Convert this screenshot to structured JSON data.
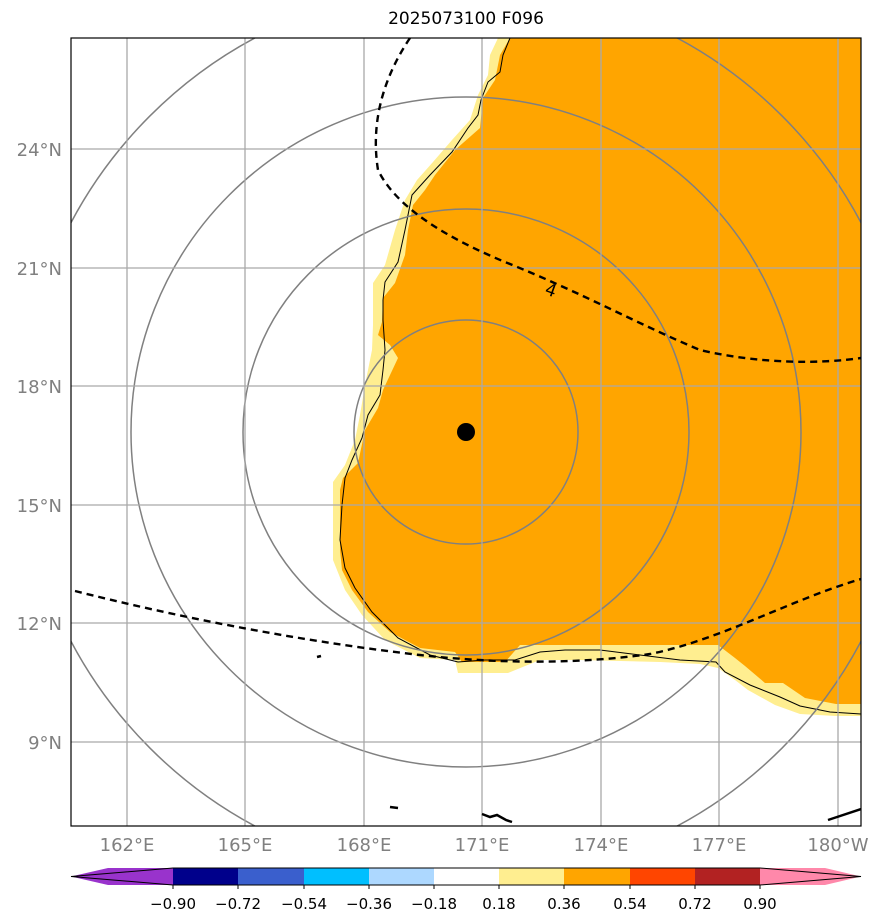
{
  "title": "2025073100 F096",
  "map": {
    "lon_ticks": [
      "162°E",
      "165°E",
      "168°E",
      "171°E",
      "174°E",
      "177°E",
      "180°W"
    ],
    "lat_ticks": [
      "24°N",
      "21°N",
      "18°N",
      "15°N",
      "12°N",
      "9°N"
    ],
    "center_marker": {
      "lon": 170.6,
      "lat": 16.8,
      "color": "#000000"
    },
    "range_rings": 4,
    "contour_labels": [
      "4"
    ],
    "colors": {
      "grid": "#a9a9a9",
      "ring": "#808080",
      "fill_054": "#ffa500",
      "fill_036": "#ffee90",
      "coast": "#000000"
    }
  },
  "colorbar": {
    "ticks": [
      "−0.90",
      "−0.72",
      "−0.54",
      "−0.36",
      "−0.18",
      "0.18",
      "0.36",
      "0.54",
      "0.72",
      "0.90"
    ],
    "colors": [
      "#9933cc",
      "#00008b",
      "#3a5fcd",
      "#00bfff",
      "#add8ff",
      "#ffffff",
      "#ffee90",
      "#ffa500",
      "#ff4500",
      "#b22222",
      "#ff88aa"
    ]
  }
}
